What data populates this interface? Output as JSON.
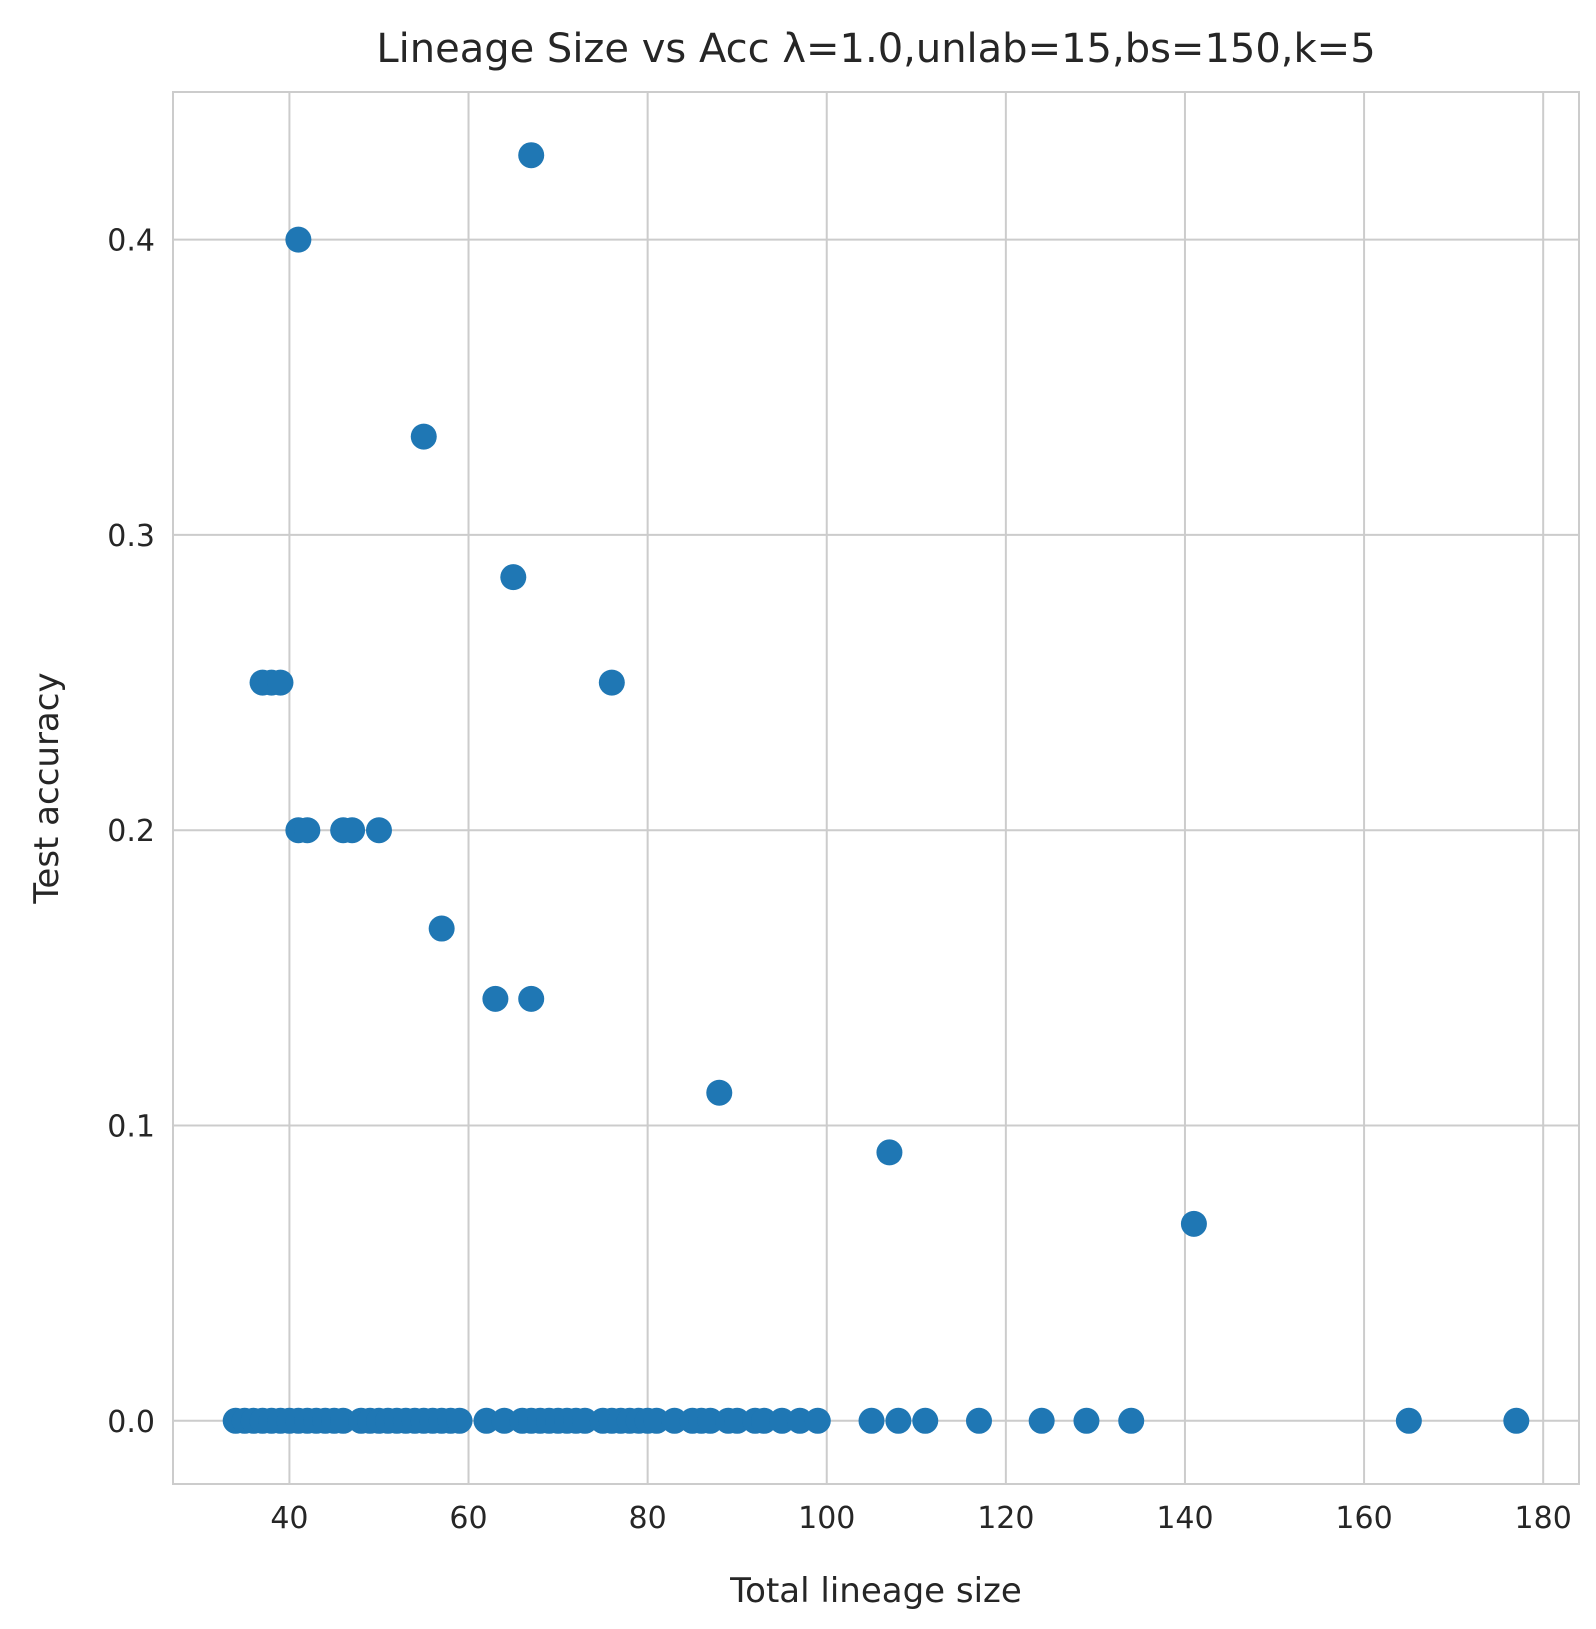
{
  "chart_data": {
    "type": "scatter",
    "title": "Lineage Size vs Acc λ=1.0,unlab=15,bs=150,k=5",
    "xlabel": "Total lineage size",
    "ylabel": "Test accuracy",
    "xlim": [
      27,
      184
    ],
    "ylim": [
      -0.0214,
      0.45
    ],
    "xticks": [
      40,
      60,
      80,
      100,
      120,
      140,
      160,
      180
    ],
    "yticks": [
      0.0,
      0.1,
      0.2,
      0.3,
      0.4
    ],
    "xtick_labels": [
      "40",
      "60",
      "80",
      "100",
      "120",
      "140",
      "160",
      "180"
    ],
    "ytick_labels": [
      "0.0",
      "0.1",
      "0.2",
      "0.3",
      "0.4"
    ],
    "grid": true,
    "color": "#1f77b4",
    "x": [
      67,
      41,
      55,
      65,
      37,
      38,
      39,
      76,
      41,
      42,
      46,
      47,
      50,
      57,
      63,
      67,
      88,
      107,
      141,
      34,
      35,
      36,
      37,
      38,
      39,
      40,
      41,
      42,
      43,
      44,
      45,
      46,
      48,
      49,
      50,
      51,
      52,
      53,
      54,
      55,
      56,
      57,
      58,
      59,
      62,
      64,
      66,
      67,
      68,
      69,
      70,
      71,
      72,
      73,
      75,
      76,
      77,
      78,
      79,
      80,
      81,
      83,
      85,
      86,
      87,
      89,
      90,
      92,
      93,
      95,
      97,
      99,
      105,
      108,
      111,
      117,
      124,
      129,
      134,
      165,
      177
    ],
    "y": [
      0.4286,
      0.4,
      0.3333,
      0.2857,
      0.25,
      0.25,
      0.25,
      0.25,
      0.2,
      0.2,
      0.2,
      0.2,
      0.2,
      0.1667,
      0.1429,
      0.1429,
      0.1111,
      0.0909,
      0.0667,
      0,
      0,
      0,
      0,
      0,
      0,
      0,
      0,
      0,
      0,
      0,
      0,
      0,
      0,
      0,
      0,
      0,
      0,
      0,
      0,
      0,
      0,
      0,
      0,
      0,
      0,
      0,
      0,
      0,
      0,
      0,
      0,
      0,
      0,
      0,
      0,
      0,
      0,
      0,
      0,
      0,
      0,
      0,
      0,
      0,
      0,
      0,
      0,
      0,
      0,
      0,
      0,
      0,
      0,
      0,
      0,
      0,
      0,
      0,
      0,
      0,
      0
    ]
  }
}
